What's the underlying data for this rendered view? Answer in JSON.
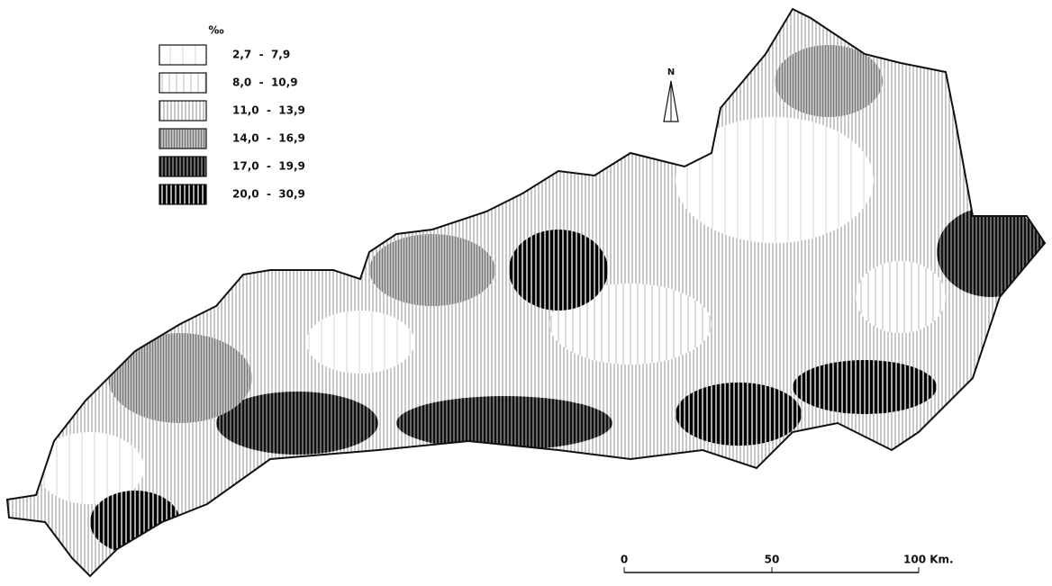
{
  "legend": {
    "title": "‰",
    "items": [
      {
        "label": "2,7  -  7,9"
      },
      {
        "label": "8,0  -  10,9"
      },
      {
        "label": "11,0  -  13,9"
      },
      {
        "label": "14,0  -  16,9"
      },
      {
        "label": "17,0  -  19,9"
      },
      {
        "label": "20,0  -  30,9"
      }
    ]
  },
  "north": "N",
  "scale": {
    "labels": [
      "0",
      "50",
      "100 Km."
    ]
  }
}
